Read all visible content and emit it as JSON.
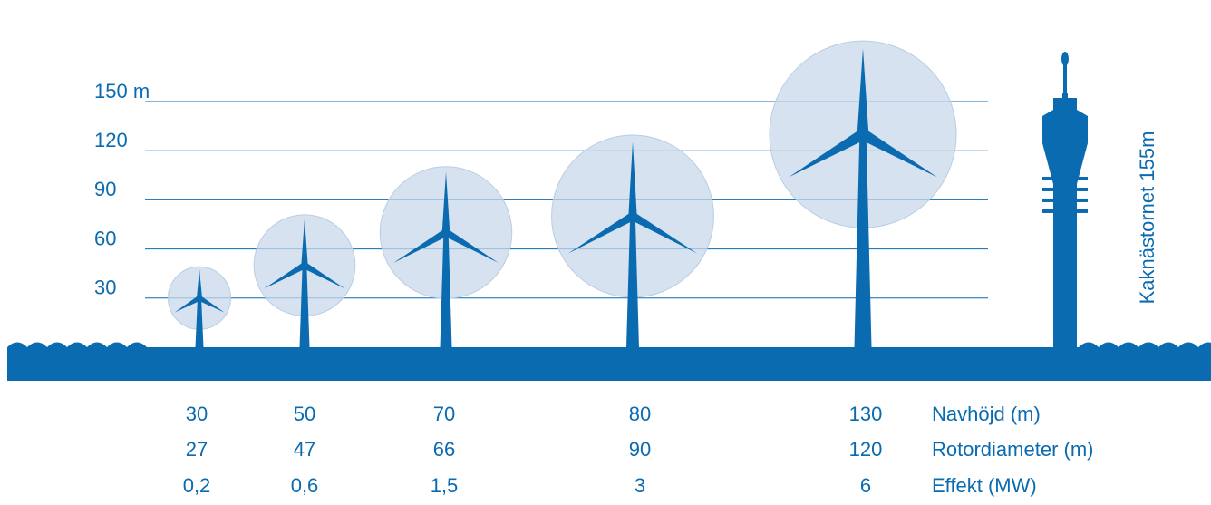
{
  "chart_data": {
    "type": "turbine",
    "ylim": [
      0,
      150
    ],
    "yticks": [
      30,
      60,
      90,
      120,
      {
        "value": 150,
        "label": "150 m"
      }
    ],
    "grid": true,
    "color": "#0b6bb0",
    "rotor_color": "#c8d8ea",
    "series": [
      {
        "name": "Navhöjd (m)",
        "values": [
          30,
          50,
          70,
          80,
          130
        ]
      },
      {
        "name": "Rotordiameter (m)",
        "values": [
          27,
          47,
          66,
          90,
          120
        ]
      },
      {
        "name": "Effekt (MW)",
        "values": [
          0.2,
          0.6,
          1.5,
          3,
          6
        ],
        "value_labels": [
          "0,2",
          "0,6",
          "1,5",
          "3",
          "6"
        ]
      }
    ],
    "tower": {
      "label": "Kaknästornet 155m",
      "height": 155
    }
  }
}
